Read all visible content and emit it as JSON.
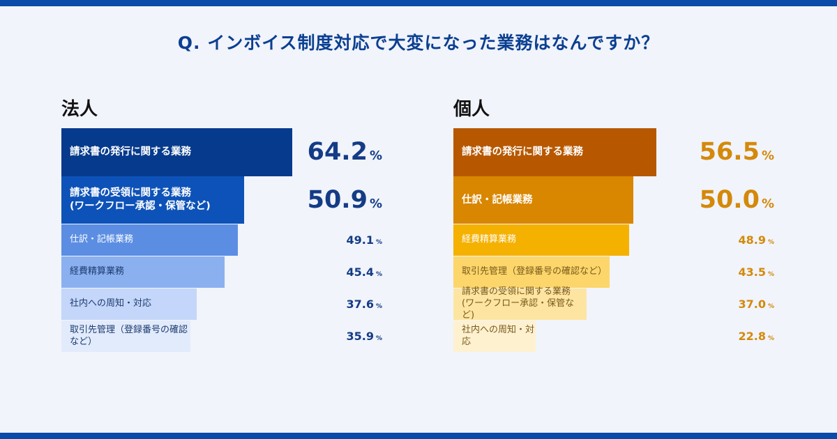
{
  "title": "Q. インボイス制度対応で大変になった業務はなんですか？",
  "colors": {
    "frame": "#0a4aa8",
    "corp_value": "#143c86",
    "indiv_value": "#d4890a"
  },
  "chart_data": [
    {
      "type": "bar",
      "orientation": "horizontal",
      "title": "法人",
      "unit": "%",
      "xlim": [
        0,
        100
      ],
      "categories": [
        "請求書の発行に関する業務",
        "請求書の受領に関する業務\n(ワークフロー承認・保管など)",
        "仕訳・記帳業務",
        "経費精算業務",
        "社内への周知・対応",
        "取引先管理（登録番号の確認など）"
      ],
      "values": [
        64.2,
        50.9,
        49.1,
        45.4,
        37.6,
        35.9
      ],
      "value_labels": [
        "64.2",
        "50.9",
        "49.1",
        "45.4",
        "37.6",
        "35.9"
      ],
      "bar_colors": [
        "#053a8c",
        "#0d52b8",
        "#5b8ee3",
        "#8bb0f0",
        "#c4d6f9",
        "#e2ebfc"
      ],
      "text_colors": [
        "#ffffff",
        "#ffffff",
        "#ffffff",
        "#1c3b6e",
        "#1c3b6e",
        "#1c3b6e"
      ]
    },
    {
      "type": "bar",
      "orientation": "horizontal",
      "title": "個人",
      "unit": "%",
      "xlim": [
        0,
        100
      ],
      "categories": [
        "請求書の発行に関する業務",
        "仕訳・記帳業務",
        "経費精算業務",
        "取引先管理（登録番号の確認など）",
        "請求書の受領に関する業務\n(ワークフロー承認・保管など)",
        "社内への周知・対応"
      ],
      "values": [
        56.5,
        50.0,
        48.9,
        43.5,
        37.0,
        22.8
      ],
      "value_labels": [
        "56.5",
        "50.0",
        "48.9",
        "43.5",
        "37.0",
        "22.8"
      ],
      "bar_colors": [
        "#b75800",
        "#d98600",
        "#f5b100",
        "#fcd66a",
        "#fde5a1",
        "#fef1d0"
      ],
      "text_colors": [
        "#ffffff",
        "#ffffff",
        "#ffffff",
        "#7a5a1c",
        "#7a5a1c",
        "#7a5a1c"
      ]
    }
  ]
}
